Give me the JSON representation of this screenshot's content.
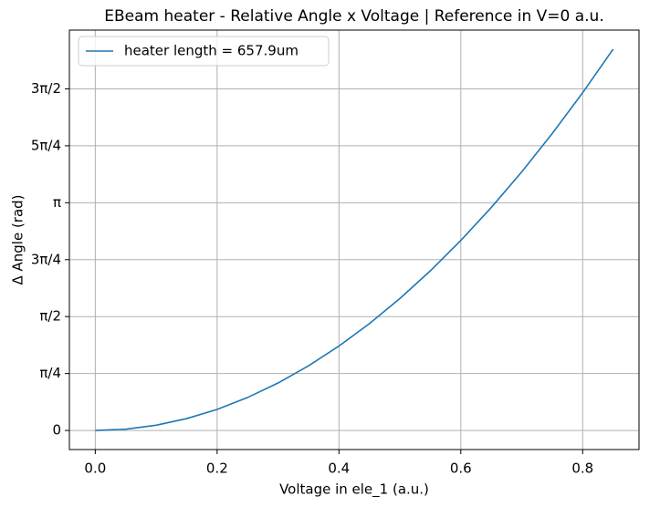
{
  "chart_data": {
    "type": "line",
    "title": "EBeam heater  -  Relative Angle x Voltage | Reference in V=0 a.u.",
    "x_label": "Voltage in ele_1 (a.u.)",
    "y_label": "Δ Angle (rad)",
    "x": [
      0,
      0.05,
      0.1,
      0.15,
      0.2,
      0.25,
      0.3,
      0.35,
      0.4,
      0.45,
      0.5,
      0.55,
      0.6,
      0.65,
      0.7,
      0.75,
      0.8,
      0.85
    ],
    "series": [
      {
        "name": "heater length = 657.9um",
        "color": "#1f77b4",
        "values": [
          0,
          0.018,
          0.073,
          0.164,
          0.291,
          0.455,
          0.655,
          0.892,
          1.165,
          1.474,
          1.82,
          2.202,
          2.621,
          3.076,
          3.567,
          4.095,
          4.659,
          5.26
        ]
      }
    ],
    "xlim": [
      -0.0425,
      0.8925
    ],
    "xticks": [
      {
        "value": 0,
        "label": "0.0"
      },
      0.2,
      0.4,
      0.6,
      0.8
    ],
    "ylim": [
      -0.263,
      5.523
    ],
    "yticks": [
      0,
      {
        "value": 0.7854,
        "label": "π/4"
      },
      {
        "value": 1.5708,
        "label": "π/2"
      },
      {
        "value": 2.3562,
        "label": "3π/4"
      },
      {
        "value": 3.1416,
        "label": "π"
      },
      {
        "value": 3.927,
        "label": "5π/4"
      },
      {
        "value": 4.7124,
        "label": "3π/2"
      }
    ],
    "grid": true,
    "legend": "upper left"
  }
}
